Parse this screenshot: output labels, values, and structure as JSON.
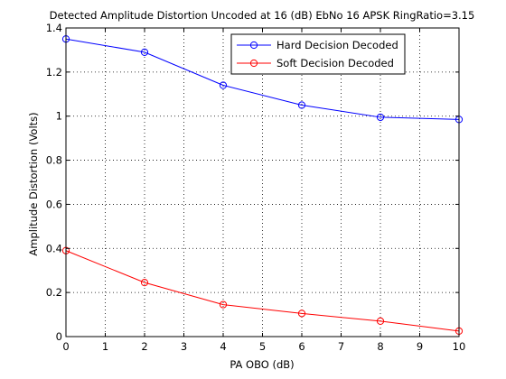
{
  "chart_data": {
    "type": "line",
    "title": "Detected Amplitude Distortion Uncoded at 16 (dB) EbNo 16 APSK RingRatio=3.15",
    "xlabel": "PA OBO (dB)",
    "ylabel": "Amplitude Distortion (Volts)",
    "xlim": [
      0,
      10
    ],
    "ylim": [
      0,
      1.4
    ],
    "xticks": [
      "0",
      "1",
      "2",
      "3",
      "4",
      "5",
      "6",
      "7",
      "8",
      "9",
      "10"
    ],
    "yticks": [
      "0",
      "0.2",
      "0.4",
      "0.6",
      "0.8",
      "1",
      "1.2",
      "1.4"
    ],
    "grid": true,
    "legend_position": "top-right",
    "series": [
      {
        "name": "Hard Decision Decoded",
        "color": "#0000ff",
        "marker": "circle",
        "x": [
          0,
          2,
          4,
          6,
          8,
          10
        ],
        "y": [
          1.35,
          1.29,
          1.14,
          1.05,
          0.995,
          0.985
        ]
      },
      {
        "name": "Soft Decision Decoded",
        "color": "#ff0000",
        "marker": "circle",
        "x": [
          0,
          2,
          4,
          6,
          8,
          10
        ],
        "y": [
          0.39,
          0.245,
          0.145,
          0.105,
          0.07,
          0.025
        ]
      }
    ]
  }
}
